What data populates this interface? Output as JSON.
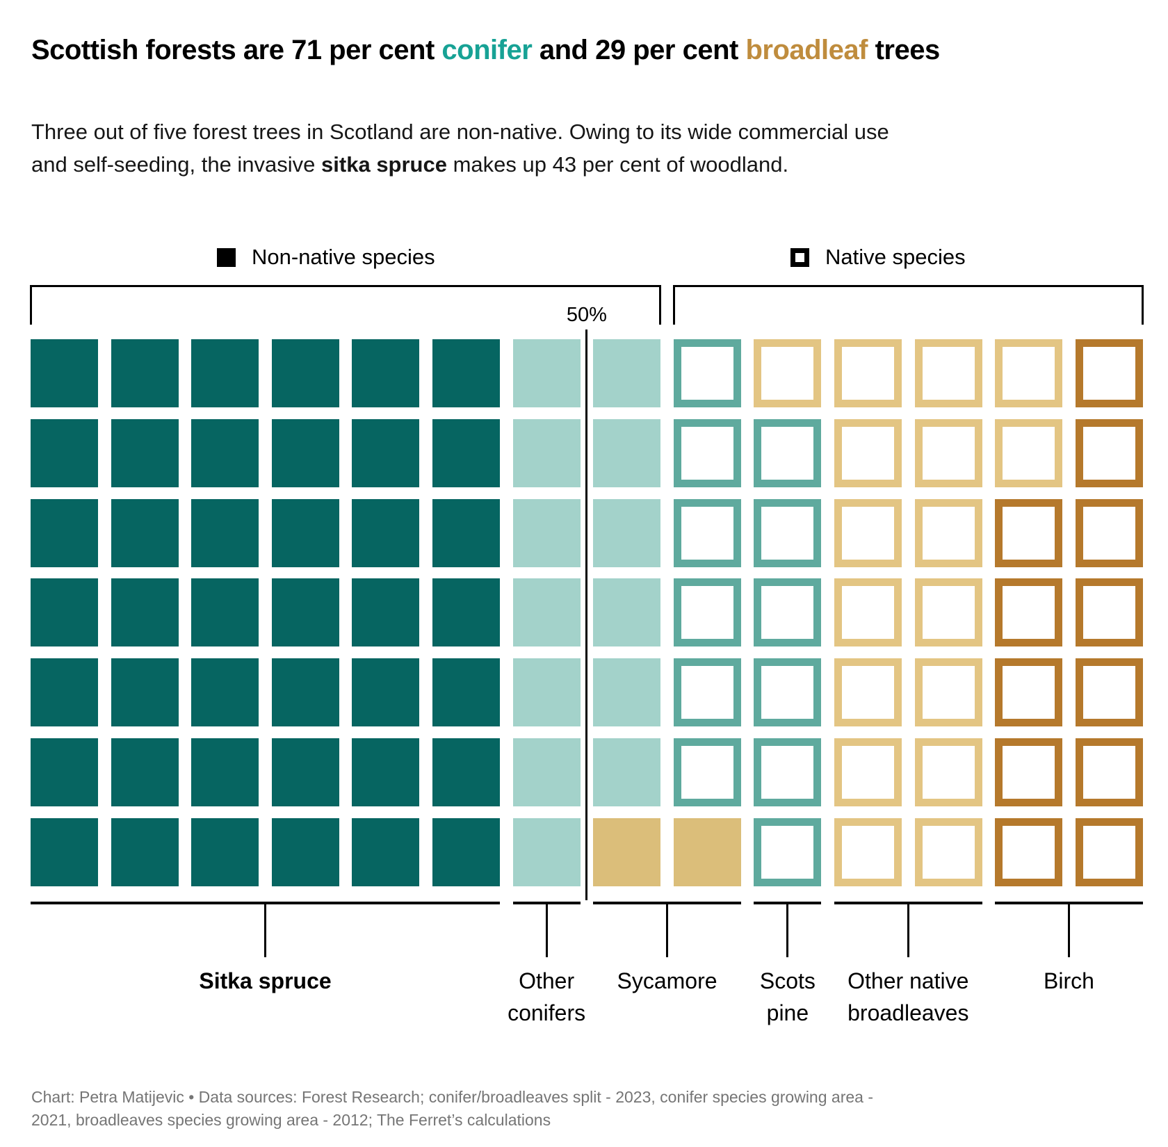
{
  "title": {
    "part1": "Scottish forests are 71 per cent ",
    "conifer_word": "conifer",
    "part2": " and 29 per cent ",
    "broadleaf_word": "broadleaf",
    "part3": " trees"
  },
  "subtitle": {
    "line1": "Three out of five forest trees in Scotland are non-native. Owing to its wide commercial use",
    "line2_pre": "and self-seeding, the invasive ",
    "line2_bold": "sitka spruce",
    "line2_post": " makes up 43 per cent of woodland."
  },
  "legend": {
    "non_native_label": "Non-native species",
    "native_label": "Native species"
  },
  "reference_line": {
    "label": "50%"
  },
  "footer": {
    "line1": "Chart: Petra Matijevic • Data sources: Forest Research; conifer/broadleaves split - 2023, conifer species growing area -",
    "line2": "2021, broadleaves species growing area - 2012; The Ferret’s calculations"
  },
  "colors": {
    "title_conifer": "#17a295",
    "title_broadleaf": "#bf8c3d",
    "sitka_spruce": "#066561",
    "other_conifers": "#a3d2ca",
    "sycamore": "#dbbe7a",
    "scots_pine_outline": "#5faa9e",
    "other_native_broadleaves_outline": "#e3c583",
    "birch_outline": "#b5792c",
    "footer_gray": "#757575"
  },
  "chart_data": {
    "type": "waffle",
    "title": "Scottish forests are 71 per cent conifer and 29 per cent broadleaf trees",
    "grid": {
      "rows": 7,
      "cols": 14,
      "total_cells": 98,
      "matrix": [
        "SSSSSSOOPNNNNB",
        "SSSSSSOOPPNNNB",
        "SSSSSSOOPPNNBB",
        "SSSSSSOOPPNNBB",
        "SSSSSSOOPPNNBB",
        "SSSSSSOOPPNNBB",
        "SSSSSSOYYPNNBB"
      ]
    },
    "series": [
      {
        "key": "S",
        "name": "Sitka spruce",
        "group": "Non-native species",
        "style": "filled",
        "color": "#066561",
        "cells": 42,
        "pct": 43
      },
      {
        "key": "O",
        "name": "Other conifers",
        "group": "Non-native species",
        "style": "filled",
        "color": "#a3d2ca",
        "cells": 13,
        "pct": 13
      },
      {
        "key": "Y",
        "name": "Sycamore",
        "group": "Non-native species",
        "style": "filled",
        "color": "#dbbe7a",
        "cells": 2,
        "pct": 2
      },
      {
        "key": "P",
        "name": "Scots pine",
        "group": "Native species",
        "style": "outline",
        "color": "#5faa9e",
        "cells": 12,
        "pct": 12
      },
      {
        "key": "N",
        "name": "Other native broadleaves",
        "group": "Native species",
        "style": "outline",
        "color": "#e3c583",
        "cells": 17,
        "pct": 17
      },
      {
        "key": "B",
        "name": "Birch",
        "group": "Native species",
        "style": "outline",
        "color": "#b5792c",
        "cells": 12,
        "pct": 12
      }
    ],
    "totals": {
      "conifer_pct": 71,
      "broadleaf_pct": 29,
      "sitka_spruce_pct": 43,
      "non_native_cells": 57,
      "native_cells": 41
    },
    "reference_line_pct": 50,
    "legend_position": "top",
    "groups": [
      {
        "name": "Non-native species",
        "bracket_cols": [
          0,
          7
        ]
      },
      {
        "name": "Native species",
        "bracket_cols": [
          8,
          13
        ]
      }
    ]
  },
  "axis": {
    "species_labels": [
      {
        "id": "sitka-spruce",
        "lines": [
          "Sitka spruce"
        ],
        "bold": true,
        "cols": [
          0,
          5
        ]
      },
      {
        "id": "other-conifers",
        "lines": [
          "Other",
          "conifers"
        ],
        "bold": false,
        "cols": [
          6,
          6
        ]
      },
      {
        "id": "sycamore",
        "lines": [
          "Sycamore"
        ],
        "bold": false,
        "cols": [
          7,
          8
        ]
      },
      {
        "id": "scots-pine",
        "lines": [
          "Scots",
          "pine"
        ],
        "bold": false,
        "cols": [
          9,
          9
        ]
      },
      {
        "id": "other-native-broadleaves",
        "lines": [
          "Other native",
          "broadleaves"
        ],
        "bold": false,
        "cols": [
          10,
          11
        ]
      },
      {
        "id": "birch",
        "lines": [
          "Birch"
        ],
        "bold": false,
        "cols": [
          12,
          13
        ]
      }
    ]
  }
}
